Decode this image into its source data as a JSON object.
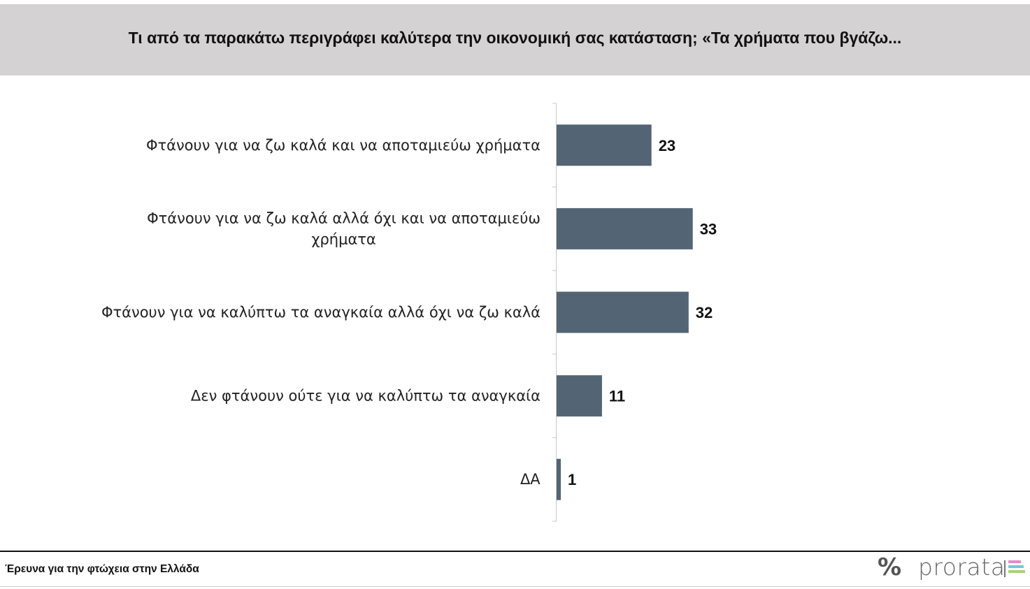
{
  "header": {
    "title": "Τι από τα παρακάτω περιγράφει καλύτερα την οικονομική σας κατάσταση; «Τα χρήματα που βγάζω..."
  },
  "chart_data": {
    "type": "bar",
    "orientation": "horizontal",
    "title": "Τι από τα παρακάτω περιγράφει καλύτερα την οικονομική σας κατάσταση; «Τα χρήματα που βγάζω...",
    "categories": [
      [
        "Φτάνουν για να ζω καλά και να αποταμιεύω χρήματα"
      ],
      [
        "Φτάνουν για να ζω καλά αλλά όχι και να αποταμιεύω",
        "χρήματα"
      ],
      [
        "Φτάνουν για να καλύπτω τα αναγκαία αλλά όχι να ζω καλά"
      ],
      [
        "Δεν φτάνουν ούτε για να καλύπτω τα αναγκαία"
      ],
      [
        "ΔΑ"
      ]
    ],
    "values": [
      23,
      33,
      32,
      11,
      1
    ],
    "bar_color": "#536475",
    "xlim": [
      0,
      100
    ],
    "grid": false,
    "legend": "none"
  },
  "footer": {
    "note": "Έρευνα για την φτώχεια στην Ελλάδα"
  },
  "logo": {
    "symbol": "%",
    "text": "prorata",
    "bar_colors": [
      "#e58ac8",
      "#6ec9d8",
      "#a5d37a"
    ]
  }
}
